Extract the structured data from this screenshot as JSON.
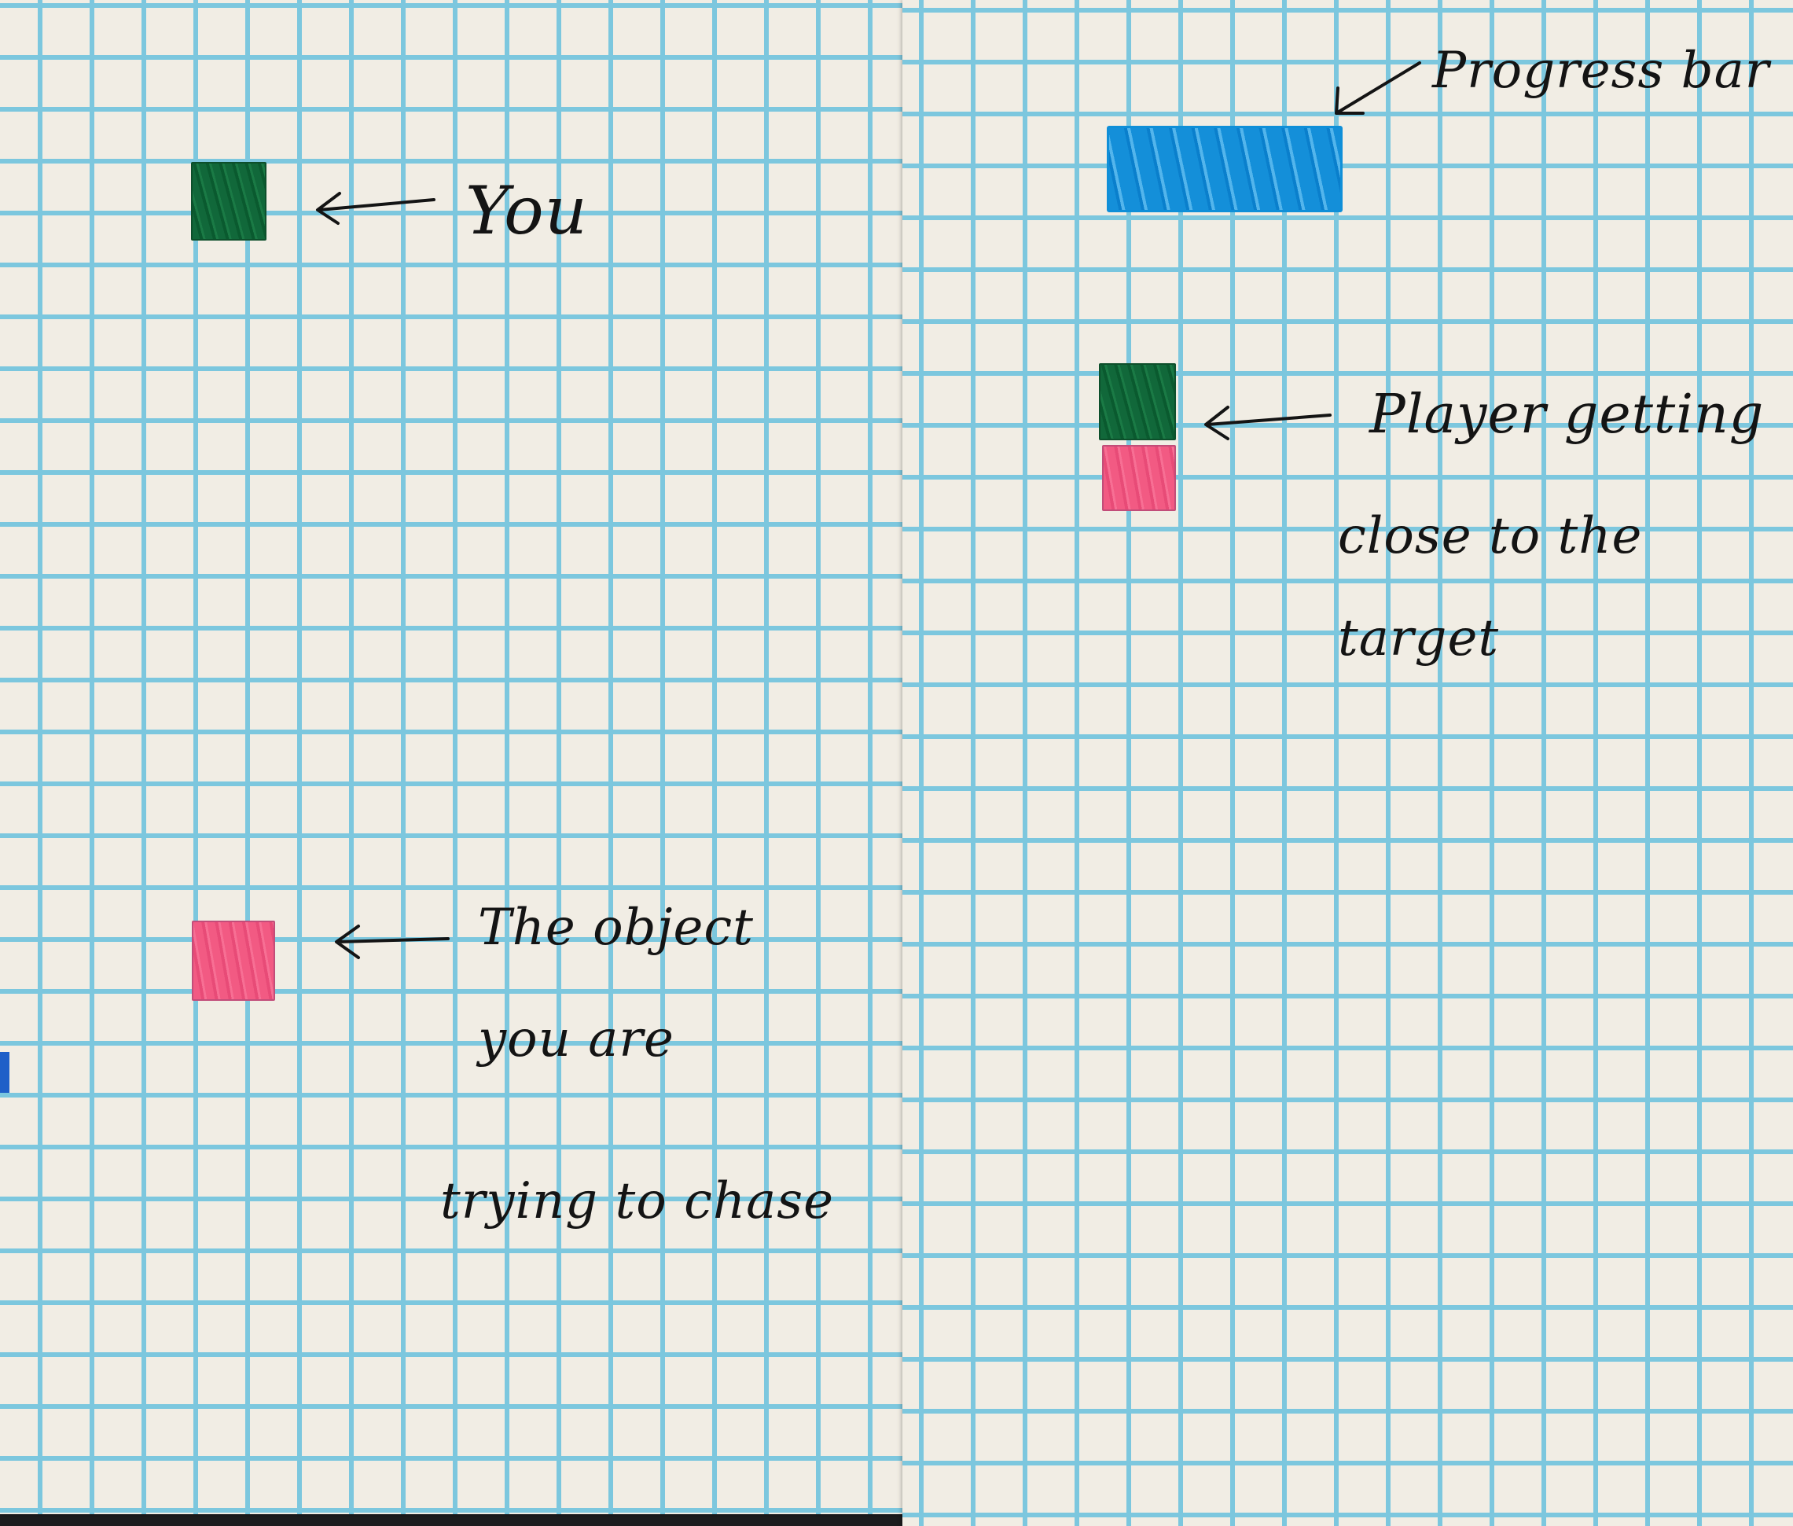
{
  "left_panel": {
    "you_label": "You",
    "object_label_lines": [
      "The object",
      "you are",
      "trying to chase"
    ]
  },
  "right_panel": {
    "progress_bar_label": "Progress bar",
    "progress_fraction": 1.0,
    "caption_lines": [
      "Player getting",
      "close to the",
      "target"
    ]
  },
  "colors": {
    "player": "#11683a",
    "target": "#f25a83",
    "progress": "#148fd9",
    "grid": "#7cc7de",
    "paper": "#f1ede4"
  }
}
